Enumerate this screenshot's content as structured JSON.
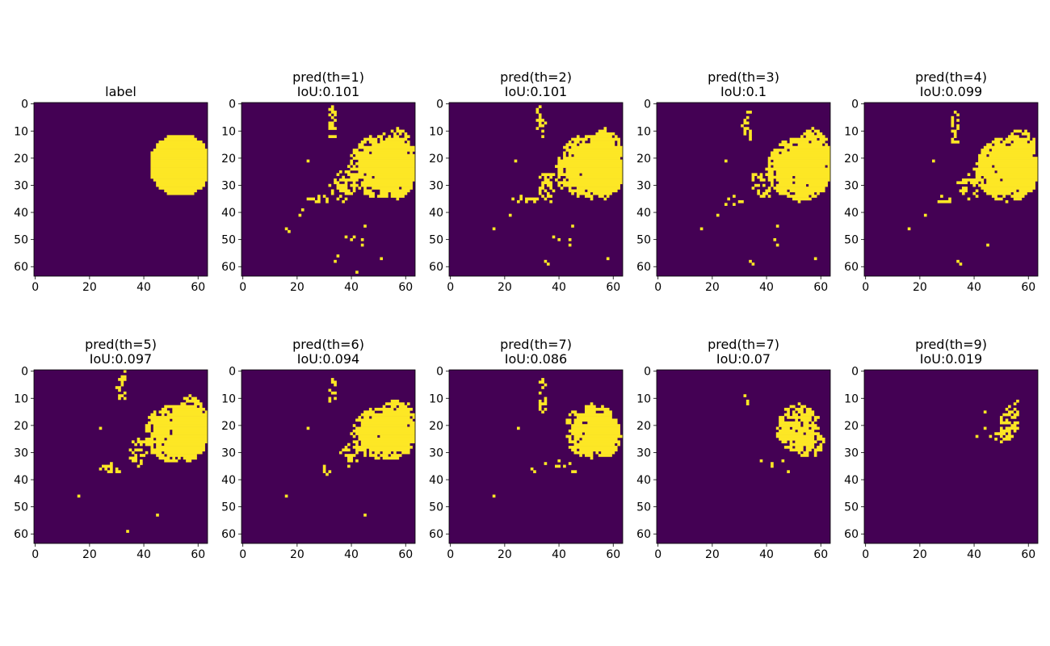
{
  "colors": {
    "background_class": "#440154",
    "foreground_class": "#fde725",
    "axis": "#000000"
  },
  "chart_data": [
    {
      "type": "heatmap",
      "title": "label",
      "subtitle": "",
      "xlim": [
        0,
        63
      ],
      "ylim": [
        63,
        0
      ],
      "x_ticks": [
        "0",
        "20",
        "40",
        "60"
      ],
      "y_ticks": [
        "0",
        "10",
        "20",
        "30",
        "40",
        "50",
        "60"
      ],
      "blobs": [
        {
          "cx": 53.5,
          "cy": 22.5,
          "r": 11.5,
          "density": 1.0
        }
      ],
      "points": []
    },
    {
      "type": "heatmap",
      "title": "pred(th=1)",
      "subtitle": "IoU:0.101",
      "xlim": [
        0,
        63
      ],
      "ylim": [
        63,
        0
      ],
      "x_ticks": [
        "0",
        "20",
        "40",
        "60"
      ],
      "y_ticks": [
        "0",
        "10",
        "20",
        "30",
        "40",
        "50",
        "60"
      ],
      "blobs": [
        {
          "cx": 52,
          "cy": 23,
          "rx": 13,
          "ry": 12,
          "density": 0.95
        },
        {
          "cx": 57,
          "cy": 22,
          "rx": 7,
          "ry": 13,
          "density": 0.95
        },
        {
          "cx": 33,
          "cy": 7,
          "rx": 2,
          "ry": 6,
          "density": 0.6
        },
        {
          "cx": 37,
          "cy": 30,
          "rx": 5,
          "ry": 6,
          "density": 0.45
        },
        {
          "cx": 28,
          "cy": 35,
          "rx": 5,
          "ry": 2,
          "density": 0.4
        }
      ],
      "points": [
        [
          16,
          46
        ],
        [
          17,
          47
        ],
        [
          24,
          21
        ],
        [
          21,
          41
        ],
        [
          22,
          39
        ],
        [
          38,
          49
        ],
        [
          40,
          50
        ],
        [
          41,
          49
        ],
        [
          44,
          50
        ],
        [
          44,
          52
        ],
        [
          45,
          45
        ],
        [
          35,
          56
        ],
        [
          34,
          58
        ],
        [
          51,
          57
        ],
        [
          42,
          62
        ]
      ]
    },
    {
      "type": "heatmap",
      "title": "pred(th=2)",
      "subtitle": "IoU:0.101",
      "xlim": [
        0,
        63
      ],
      "ylim": [
        63,
        0
      ],
      "x_ticks": [
        "0",
        "20",
        "40",
        "60"
      ],
      "y_ticks": [
        "0",
        "10",
        "20",
        "30",
        "40",
        "50",
        "60"
      ],
      "blobs": [
        {
          "cx": 52,
          "cy": 23,
          "rx": 13,
          "ry": 12,
          "density": 0.95
        },
        {
          "cx": 57,
          "cy": 22,
          "rx": 7,
          "ry": 13,
          "density": 0.95
        },
        {
          "cx": 33,
          "cy": 7,
          "rx": 2,
          "ry": 6,
          "density": 0.6
        },
        {
          "cx": 37,
          "cy": 30,
          "rx": 5,
          "ry": 6,
          "density": 0.45
        },
        {
          "cx": 28,
          "cy": 35,
          "rx": 5,
          "ry": 2,
          "density": 0.4
        }
      ],
      "points": [
        [
          16,
          46
        ],
        [
          24,
          21
        ],
        [
          22,
          41
        ],
        [
          38,
          49
        ],
        [
          40,
          50
        ],
        [
          44,
          50
        ],
        [
          44,
          52
        ],
        [
          45,
          45
        ],
        [
          35,
          58
        ],
        [
          36,
          59
        ],
        [
          58,
          57
        ]
      ]
    },
    {
      "type": "heatmap",
      "title": "pred(th=3)",
      "subtitle": "IoU:0.1",
      "xlim": [
        0,
        63
      ],
      "ylim": [
        63,
        0
      ],
      "x_ticks": [
        "0",
        "20",
        "40",
        "60"
      ],
      "y_ticks": [
        "0",
        "10",
        "20",
        "30",
        "40",
        "50",
        "60"
      ],
      "blobs": [
        {
          "cx": 52,
          "cy": 24,
          "rx": 12,
          "ry": 12,
          "density": 0.95
        },
        {
          "cx": 57,
          "cy": 22,
          "rx": 7,
          "ry": 13,
          "density": 0.95
        },
        {
          "cx": 33,
          "cy": 8,
          "rx": 2,
          "ry": 6,
          "density": 0.55
        },
        {
          "cx": 38,
          "cy": 30,
          "rx": 5,
          "ry": 5,
          "density": 0.45
        },
        {
          "cx": 28,
          "cy": 36,
          "rx": 4,
          "ry": 2,
          "density": 0.35
        }
      ],
      "points": [
        [
          16,
          46
        ],
        [
          25,
          21
        ],
        [
          22,
          41
        ],
        [
          44,
          45
        ],
        [
          43,
          50
        ],
        [
          44,
          52
        ],
        [
          34,
          58
        ],
        [
          35,
          59
        ],
        [
          58,
          57
        ]
      ]
    },
    {
      "type": "heatmap",
      "title": "pred(th=4)",
      "subtitle": "IoU:0.099",
      "xlim": [
        0,
        63
      ],
      "ylim": [
        63,
        0
      ],
      "x_ticks": [
        "0",
        "20",
        "40",
        "60"
      ],
      "y_ticks": [
        "0",
        "10",
        "20",
        "30",
        "40",
        "50",
        "60"
      ],
      "blobs": [
        {
          "cx": 52,
          "cy": 24,
          "rx": 12,
          "ry": 12,
          "density": 0.95
        },
        {
          "cx": 57,
          "cy": 22,
          "rx": 7,
          "ry": 13,
          "density": 0.95
        },
        {
          "cx": 33,
          "cy": 9,
          "rx": 2,
          "ry": 6,
          "density": 0.5
        },
        {
          "cx": 38,
          "cy": 30,
          "rx": 5,
          "ry": 5,
          "density": 0.4
        },
        {
          "cx": 28,
          "cy": 36,
          "rx": 4,
          "ry": 2,
          "density": 0.35
        }
      ],
      "points": [
        [
          16,
          46
        ],
        [
          25,
          21
        ],
        [
          22,
          41
        ],
        [
          45,
          52
        ],
        [
          34,
          58
        ],
        [
          35,
          59
        ]
      ]
    },
    {
      "type": "heatmap",
      "title": "pred(th=5)",
      "subtitle": "IoU:0.097",
      "xlim": [
        0,
        63
      ],
      "ylim": [
        63,
        0
      ],
      "x_ticks": [
        "0",
        "20",
        "40",
        "60"
      ],
      "y_ticks": [
        "0",
        "10",
        "20",
        "30",
        "40",
        "50",
        "60"
      ],
      "blobs": [
        {
          "cx": 52,
          "cy": 23,
          "rx": 12,
          "ry": 11,
          "density": 0.95
        },
        {
          "cx": 57,
          "cy": 21,
          "rx": 7,
          "ry": 12,
          "density": 0.95
        },
        {
          "cx": 32,
          "cy": 6,
          "rx": 2,
          "ry": 5,
          "density": 0.55
        },
        {
          "cx": 38,
          "cy": 30,
          "rx": 4,
          "ry": 5,
          "density": 0.4
        },
        {
          "cx": 28,
          "cy": 36,
          "rx": 4,
          "ry": 2,
          "density": 0.35
        }
      ],
      "points": [
        [
          16,
          46
        ],
        [
          24,
          21
        ],
        [
          33,
          0
        ],
        [
          45,
          53
        ],
        [
          34,
          59
        ]
      ]
    },
    {
      "type": "heatmap",
      "title": "pred(th=6)",
      "subtitle": "IoU:0.094",
      "xlim": [
        0,
        63
      ],
      "ylim": [
        63,
        0
      ],
      "x_ticks": [
        "0",
        "20",
        "40",
        "60"
      ],
      "y_ticks": [
        "0",
        "10",
        "20",
        "30",
        "40",
        "50",
        "60"
      ],
      "blobs": [
        {
          "cx": 52,
          "cy": 23,
          "rx": 12,
          "ry": 10,
          "density": 0.95
        },
        {
          "cx": 57,
          "cy": 21,
          "rx": 7,
          "ry": 11,
          "density": 0.95
        },
        {
          "cx": 33,
          "cy": 7,
          "rx": 2,
          "ry": 5,
          "density": 0.5
        },
        {
          "cx": 39,
          "cy": 31,
          "rx": 4,
          "ry": 4,
          "density": 0.4
        },
        {
          "cx": 30,
          "cy": 37,
          "rx": 3,
          "ry": 2,
          "density": 0.35
        }
      ],
      "points": [
        [
          16,
          46
        ],
        [
          24,
          21
        ],
        [
          45,
          53
        ]
      ]
    },
    {
      "type": "heatmap",
      "title": "pred(th=7)",
      "subtitle": "IoU:0.086",
      "xlim": [
        0,
        63
      ],
      "ylim": [
        63,
        0
      ],
      "x_ticks": [
        "0",
        "20",
        "40",
        "60"
      ],
      "y_ticks": [
        "0",
        "10",
        "20",
        "30",
        "40",
        "50",
        "60"
      ],
      "blobs": [
        {
          "cx": 52,
          "cy": 22,
          "rx": 10,
          "ry": 10,
          "density": 0.92
        },
        {
          "cx": 57,
          "cy": 24,
          "rx": 6,
          "ry": 8,
          "density": 0.9
        },
        {
          "cx": 34,
          "cy": 9,
          "rx": 2,
          "ry": 6,
          "density": 0.4
        },
        {
          "cx": 42,
          "cy": 34,
          "rx": 4,
          "ry": 3,
          "density": 0.35
        }
      ],
      "points": [
        [
          16,
          46
        ],
        [
          25,
          21
        ],
        [
          30,
          36
        ],
        [
          31,
          37
        ],
        [
          35,
          34
        ],
        [
          45,
          37
        ],
        [
          46,
          37
        ]
      ]
    },
    {
      "type": "heatmap",
      "title": "pred(th=7)",
      "subtitle": "IoU:0.07",
      "xlim": [
        0,
        63
      ],
      "ylim": [
        63,
        0
      ],
      "x_ticks": [
        "0",
        "20",
        "40",
        "60"
      ],
      "y_ticks": [
        "0",
        "10",
        "20",
        "30",
        "40",
        "50",
        "60"
      ],
      "blobs": [
        {
          "cx": 52,
          "cy": 21,
          "rx": 8,
          "ry": 9,
          "density": 0.85
        },
        {
          "cx": 56,
          "cy": 27,
          "rx": 6,
          "ry": 5,
          "density": 0.6
        },
        {
          "cx": 46,
          "cy": 23,
          "rx": 3,
          "ry": 3,
          "density": 0.7
        }
      ],
      "points": [
        [
          32,
          9
        ],
        [
          33,
          11
        ],
        [
          33,
          12
        ],
        [
          38,
          33
        ],
        [
          42,
          34
        ],
        [
          42,
          35
        ],
        [
          46,
          33
        ],
        [
          48,
          37
        ]
      ]
    },
    {
      "type": "heatmap",
      "title": "pred(th=9)",
      "subtitle": "IoU:0.019",
      "xlim": [
        0,
        63
      ],
      "ylim": [
        63,
        0
      ],
      "x_ticks": [
        "0",
        "20",
        "40",
        "60"
      ],
      "y_ticks": [
        "0",
        "10",
        "20",
        "30",
        "40",
        "50",
        "60"
      ],
      "blobs": [
        {
          "cx": 53,
          "cy": 18,
          "rx": 4,
          "ry": 5,
          "density": 0.7
        },
        {
          "cx": 50,
          "cy": 24,
          "rx": 4,
          "ry": 2,
          "density": 0.6
        }
      ],
      "points": [
        [
          41,
          24
        ],
        [
          44,
          21
        ],
        [
          44,
          15
        ],
        [
          55,
          12
        ],
        [
          56,
          11
        ]
      ]
    }
  ]
}
